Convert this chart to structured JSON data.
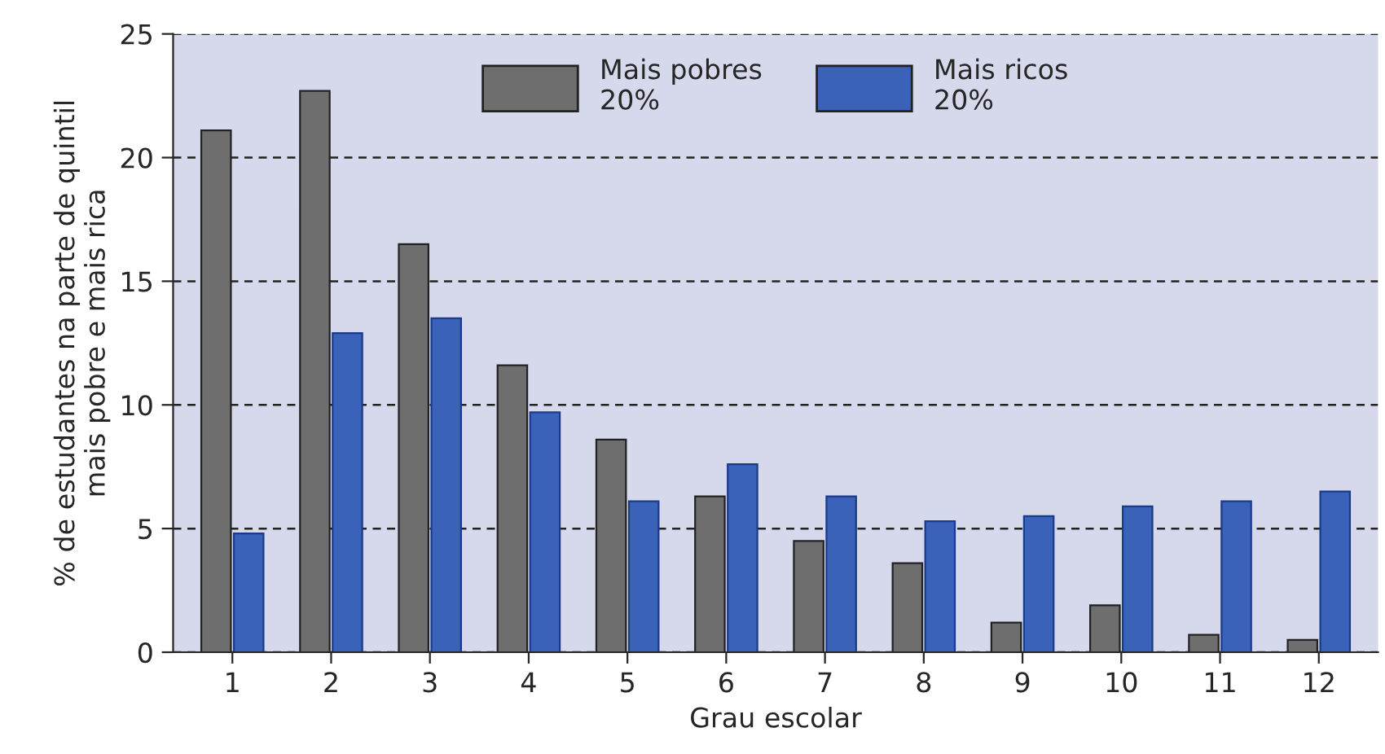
{
  "chart_data": {
    "type": "bar",
    "xlabel": "Grau escolar",
    "ylabel": "% de estudantes na parte de quintil\nmais pobre e mais rica",
    "categories": [
      "1",
      "2",
      "3",
      "4",
      "5",
      "6",
      "7",
      "8",
      "9",
      "10",
      "11",
      "12"
    ],
    "series": [
      {
        "name": "Mais pobres\n20%",
        "color": "#6e6e6e",
        "values": [
          21.1,
          22.7,
          16.5,
          11.6,
          8.6,
          6.3,
          4.5,
          3.6,
          1.2,
          1.9,
          0.7,
          0.5
        ]
      },
      {
        "name": "Mais ricos\n20%",
        "color": "#3a62b8",
        "values": [
          4.8,
          12.9,
          13.5,
          9.7,
          6.1,
          7.6,
          6.3,
          5.3,
          5.5,
          5.9,
          6.1,
          6.5
        ]
      }
    ],
    "ylim": [
      0,
      25
    ],
    "yticks": [
      0,
      5,
      10,
      15,
      20,
      25
    ],
    "grid": "y",
    "legend": "top"
  }
}
